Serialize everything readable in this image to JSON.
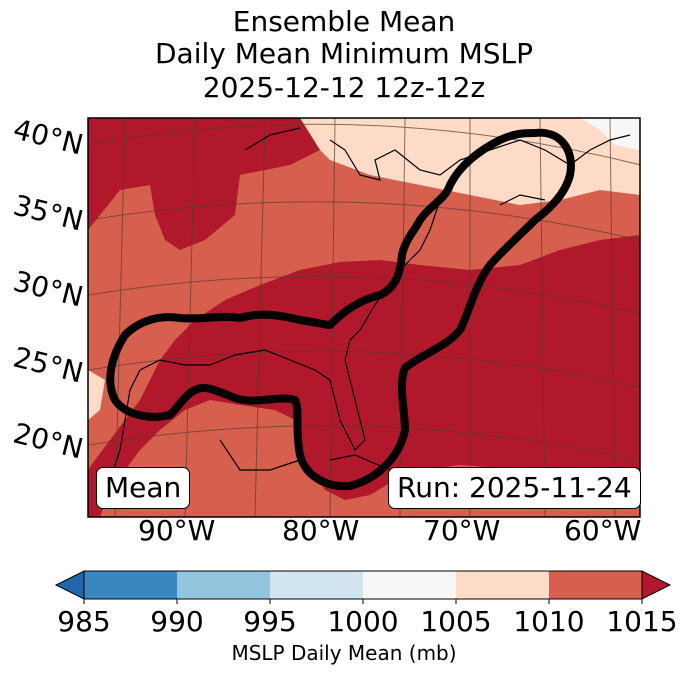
{
  "title": {
    "line1": "Ensemble Mean",
    "line2": "Daily Mean Minimum MSLP",
    "line3": "2025-12-12 12z-12z"
  },
  "map": {
    "lat_labels": [
      "40°N",
      "35°N",
      "30°N",
      "25°N",
      "20°N"
    ],
    "lon_labels": [
      "90°W",
      "80°W",
      "70°W",
      "60°W"
    ],
    "left_box": "Mean",
    "right_box": "Run: 2025-11-24"
  },
  "colorbar": {
    "ticks": [
      "985",
      "990",
      "995",
      "1000",
      "1005",
      "1010",
      "1015"
    ],
    "label": "MSLP Daily Mean (mb)",
    "colors": [
      "#3a86bf",
      "#92c5de",
      "#d1e5f0",
      "#f7f7f7",
      "#fddbc7",
      "#d6604d",
      "#b2182b"
    ],
    "under_color": "#2166ac",
    "over_color": "#b2182b"
  }
}
